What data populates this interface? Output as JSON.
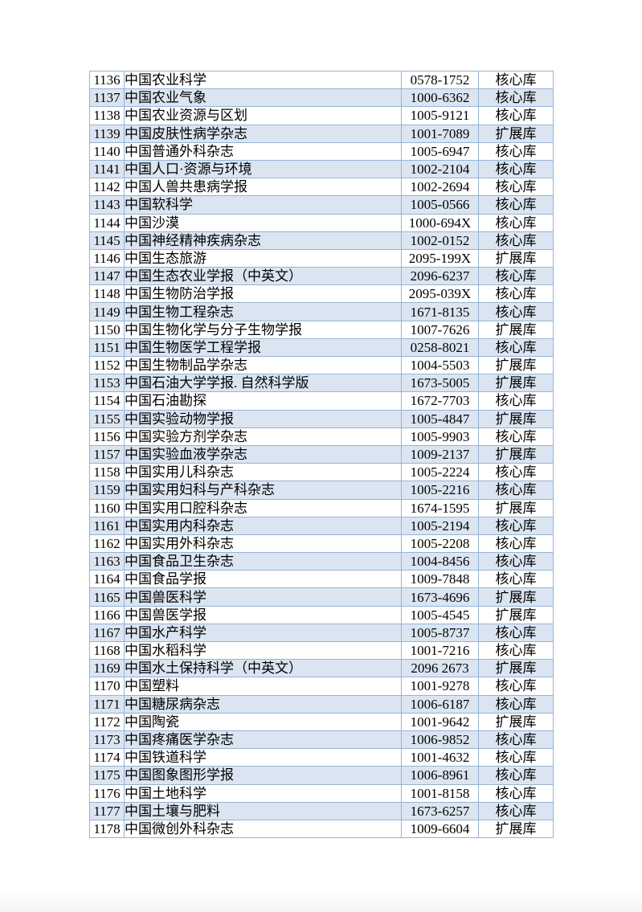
{
  "colors": {
    "row_alt": "#dbe5f1",
    "border": "#95b3d7",
    "text": "#000000",
    "page_bg": "#ffffff",
    "page_edge": "#f3f3f5"
  },
  "table": {
    "rows": [
      [
        "1136",
        "中国农业科学",
        "0578-1752",
        "核心库"
      ],
      [
        "1137",
        "中国农业气象",
        "1000-6362",
        "核心库"
      ],
      [
        "1138",
        "中国农业资源与区划",
        "1005-9121",
        "核心库"
      ],
      [
        "1139",
        "中国皮肤性病学杂志",
        "1001-7089",
        "扩展库"
      ],
      [
        "1140",
        "中国普通外科杂志",
        "1005-6947",
        "核心库"
      ],
      [
        "1141",
        "中国人口·资源与环境",
        "1002-2104",
        "核心库"
      ],
      [
        "1142",
        "中国人兽共患病学报",
        "1002-2694",
        "核心库"
      ],
      [
        "1143",
        "中国软科学",
        "1005-0566",
        "核心库"
      ],
      [
        "1144",
        "中国沙漠",
        "1000-694X",
        "核心库"
      ],
      [
        "1145",
        "中国神经精神疾病杂志",
        "1002-0152",
        "核心库"
      ],
      [
        "1146",
        "中国生态旅游",
        "2095-199X",
        "扩展库"
      ],
      [
        "1147",
        "中国生态农业学报（中英文）",
        "2096-6237",
        "核心库"
      ],
      [
        "1148",
        "中国生物防治学报",
        "2095-039X",
        "核心库"
      ],
      [
        "1149",
        "中国生物工程杂志",
        "1671-8135",
        "核心库"
      ],
      [
        "1150",
        "中国生物化学与分子生物学报",
        "1007-7626",
        "扩展库"
      ],
      [
        "1151",
        "中国生物医学工程学报",
        "0258-8021",
        "核心库"
      ],
      [
        "1152",
        "中国生物制品学杂志",
        "1004-5503",
        "扩展库"
      ],
      [
        "1153",
        "中国石油大学学报. 自然科学版",
        "1673-5005",
        "扩展库"
      ],
      [
        "1154",
        "中国石油勘探",
        "1672-7703",
        "核心库"
      ],
      [
        "1155",
        "中国实验动物学报",
        "1005-4847",
        "扩展库"
      ],
      [
        "1156",
        "中国实验方剂学杂志",
        "1005-9903",
        "核心库"
      ],
      [
        "1157",
        "中国实验血液学杂志",
        "1009-2137",
        "扩展库"
      ],
      [
        "1158",
        "中国实用儿科杂志",
        "1005-2224",
        "核心库"
      ],
      [
        "1159",
        "中国实用妇科与产科杂志",
        "1005-2216",
        "核心库"
      ],
      [
        "1160",
        "中国实用口腔科杂志",
        "1674-1595",
        "扩展库"
      ],
      [
        "1161",
        "中国实用内科杂志",
        "1005-2194",
        "核心库"
      ],
      [
        "1162",
        "中国实用外科杂志",
        "1005-2208",
        "核心库"
      ],
      [
        "1163",
        "中国食品卫生杂志",
        "1004-8456",
        "核心库"
      ],
      [
        "1164",
        "中国食品学报",
        "1009-7848",
        "核心库"
      ],
      [
        "1165",
        "中国兽医科学",
        "1673-4696",
        "扩展库"
      ],
      [
        "1166",
        "中国兽医学报",
        "1005-4545",
        "扩展库"
      ],
      [
        "1167",
        "中国水产科学",
        "1005-8737",
        "核心库"
      ],
      [
        "1168",
        "中国水稻科学",
        "1001-7216",
        "核心库"
      ],
      [
        "1169",
        "中国水土保持科学（中英文）",
        "2096 2673",
        "扩展库"
      ],
      [
        "1170",
        "中国塑料",
        "1001-9278",
        "核心库"
      ],
      [
        "1171",
        "中国糖尿病杂志",
        "1006-6187",
        "核心库"
      ],
      [
        "1172",
        "中国陶瓷",
        "1001-9642",
        "扩展库"
      ],
      [
        "1173",
        "中国疼痛医学杂志",
        "1006-9852",
        "核心库"
      ],
      [
        "1174",
        "中国铁道科学",
        "1001-4632",
        "核心库"
      ],
      [
        "1175",
        "中国图象图形学报",
        "1006-8961",
        "核心库"
      ],
      [
        "1176",
        "中国土地科学",
        "1001-8158",
        "核心库"
      ],
      [
        "1177",
        "中国土壤与肥料",
        "1673-6257",
        "核心库"
      ],
      [
        "1178",
        "中国微创外科杂志",
        "1009-6604",
        "扩展库"
      ]
    ]
  }
}
